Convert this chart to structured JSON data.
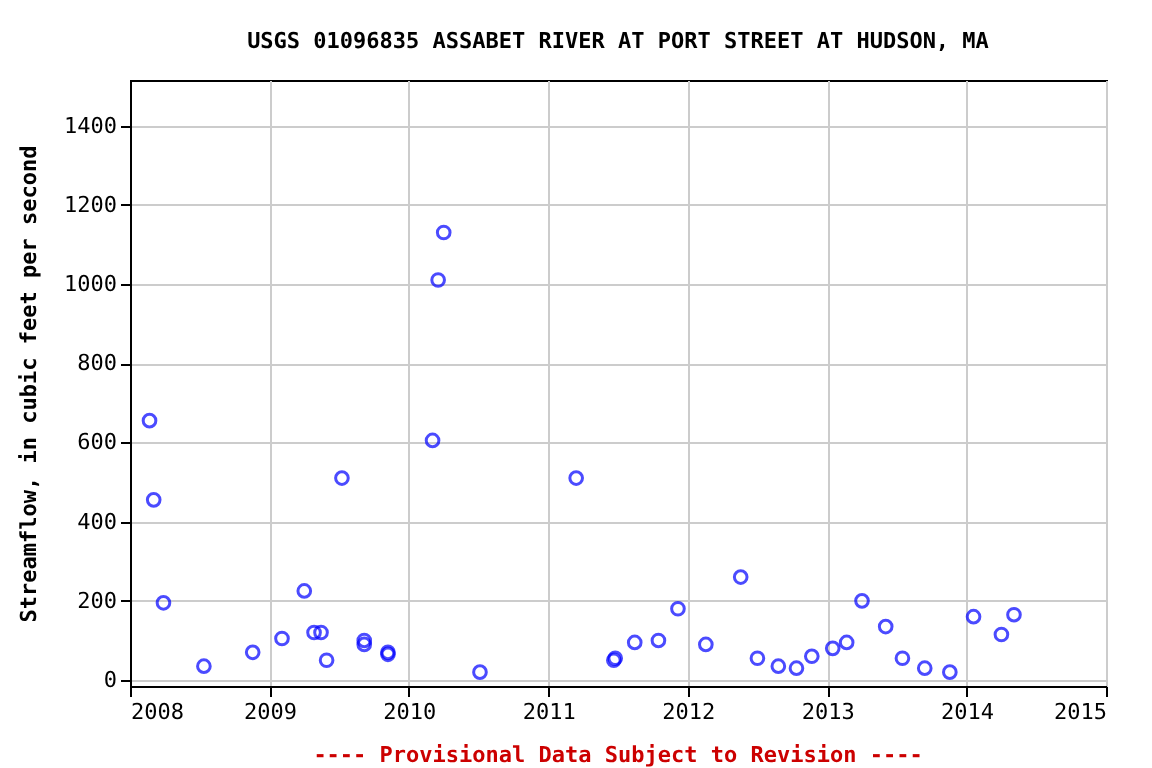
{
  "chart_data": {
    "type": "scatter",
    "title": "USGS 01096835 ASSABET RIVER AT PORT STREET AT HUDSON, MA",
    "ylabel": "Streamflow, in cubic feet per second",
    "annotations": [
      "---- Provisional Data Subject to Revision ----"
    ],
    "x": [
      2008.14,
      2008.17,
      2008.24,
      2008.53,
      2008.88,
      2009.09,
      2009.25,
      2009.32,
      2009.37,
      2009.41,
      2009.52,
      2009.68,
      2009.68,
      2009.85,
      2009.85,
      2010.17,
      2010.21,
      2010.25,
      2010.51,
      2011.2,
      2011.47,
      2011.48,
      2011.62,
      2011.79,
      2011.93,
      2012.13,
      2012.38,
      2012.5,
      2012.65,
      2012.78,
      2012.89,
      2013.04,
      2013.14,
      2013.25,
      2013.42,
      2013.54,
      2013.7,
      2013.88,
      2014.05,
      2014.25,
      2014.34
    ],
    "series": [
      {
        "color": "#0000ff",
        "values": [
          655,
          455,
          195,
          35,
          70,
          105,
          225,
          120,
          120,
          50,
          510,
          100,
          90,
          70,
          65,
          605,
          1010,
          1130,
          20,
          510,
          50,
          55,
          95,
          100,
          180,
          90,
          260,
          55,
          35,
          30,
          60,
          80,
          95,
          200,
          135,
          55,
          30,
          20,
          160,
          115,
          165
        ]
      }
    ],
    "xlim": [
      2008,
      2015
    ],
    "xticks": [
      2008,
      2009,
      2010,
      2011,
      2012,
      2013,
      2014,
      2015
    ],
    "ylim": [
      -15,
      1515
    ],
    "yticks": [
      0,
      200,
      400,
      600,
      800,
      1000,
      1200,
      1400
    ],
    "grid": true,
    "marker": "circle"
  }
}
